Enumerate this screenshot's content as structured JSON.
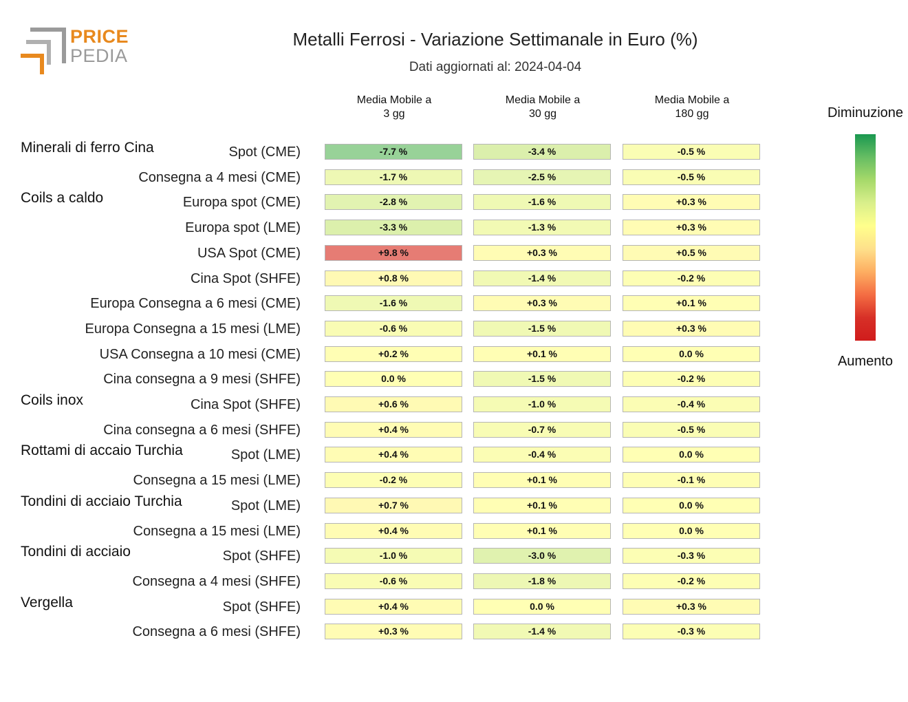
{
  "logo": {
    "line1": "PRICE",
    "line2": "PEDIA"
  },
  "chart_data": {
    "type": "heatmap",
    "title": "Metalli Ferrosi - Variazione Settimanale in Euro (%)",
    "subtitle": "Dati aggiornati al: 2024-04-04",
    "columns": [
      "Media Mobile a\n3 gg",
      "Media Mobile a\n30 gg",
      "Media Mobile a\n180 gg"
    ],
    "legend": {
      "top": "Diminuzione",
      "bottom": "Aumento"
    },
    "colorscale": [
      "#1a9850",
      "#66bd63",
      "#a6d96a",
      "#d9ef8b",
      "#ffff8c",
      "#fee08b",
      "#fdae61",
      "#f46d43",
      "#d73027"
    ],
    "groups": [
      {
        "name": "Minerali di ferro Cina",
        "rows": [
          {
            "label": "Spot (CME)",
            "values": [
              -7.7,
              -3.4,
              -0.5
            ],
            "text": [
              "-7.7 %",
              "-3.4 %",
              "-0.5 %"
            ]
          },
          {
            "label": "Consegna a 4 mesi (CME)",
            "values": [
              -1.7,
              -2.5,
              -0.5
            ],
            "text": [
              "-1.7 %",
              "-2.5 %",
              "-0.5 %"
            ]
          }
        ]
      },
      {
        "name": "Coils a caldo",
        "rows": [
          {
            "label": "Europa spot (CME)",
            "values": [
              -2.8,
              -1.6,
              0.3
            ],
            "text": [
              "-2.8 %",
              "-1.6 %",
              "+0.3 %"
            ]
          },
          {
            "label": "Europa spot (LME)",
            "values": [
              -3.3,
              -1.3,
              0.3
            ],
            "text": [
              "-3.3 %",
              "-1.3 %",
              "+0.3 %"
            ]
          },
          {
            "label": "USA Spot (CME)",
            "values": [
              9.8,
              0.3,
              0.5
            ],
            "text": [
              "+9.8 %",
              "+0.3 %",
              "+0.5 %"
            ]
          },
          {
            "label": "Cina Spot (SHFE)",
            "values": [
              0.8,
              -1.4,
              -0.2
            ],
            "text": [
              "+0.8 %",
              "-1.4 %",
              "-0.2 %"
            ]
          },
          {
            "label": "Europa Consegna a 6 mesi (CME)",
            "values": [
              -1.6,
              0.3,
              0.1
            ],
            "text": [
              "-1.6 %",
              "+0.3 %",
              "+0.1 %"
            ]
          },
          {
            "label": "Europa Consegna a 15 mesi (LME)",
            "values": [
              -0.6,
              -1.5,
              0.3
            ],
            "text": [
              "-0.6 %",
              "-1.5 %",
              "+0.3 %"
            ]
          },
          {
            "label": "USA Consegna a 10 mesi (CME)",
            "values": [
              0.2,
              0.1,
              0.0
            ],
            "text": [
              "+0.2 %",
              "+0.1 %",
              "0.0 %"
            ]
          },
          {
            "label": "Cina consegna a 9 mesi (SHFE)",
            "values": [
              0.0,
              -1.5,
              -0.2
            ],
            "text": [
              "0.0 %",
              "-1.5 %",
              "-0.2 %"
            ]
          }
        ]
      },
      {
        "name": "Coils inox",
        "rows": [
          {
            "label": "Cina Spot (SHFE)",
            "values": [
              0.6,
              -1.0,
              -0.4
            ],
            "text": [
              "+0.6 %",
              "-1.0 %",
              "-0.4 %"
            ]
          },
          {
            "label": "Cina consegna a 6 mesi (SHFE)",
            "values": [
              0.4,
              -0.7,
              -0.5
            ],
            "text": [
              "+0.4 %",
              "-0.7 %",
              "-0.5 %"
            ]
          }
        ]
      },
      {
        "name": "Rottami di accaio Turchia",
        "rows": [
          {
            "label": "Spot (LME)",
            "values": [
              0.4,
              -0.4,
              0.0
            ],
            "text": [
              "+0.4 %",
              "-0.4 %",
              "0.0 %"
            ]
          },
          {
            "label": "Consegna a 15 mesi (LME)",
            "values": [
              -0.2,
              0.1,
              -0.1
            ],
            "text": [
              "-0.2 %",
              "+0.1 %",
              "-0.1 %"
            ]
          }
        ]
      },
      {
        "name": "Tondini di acciaio Turchia",
        "rows": [
          {
            "label": "Spot (LME)",
            "values": [
              0.7,
              0.1,
              0.0
            ],
            "text": [
              "+0.7 %",
              "+0.1 %",
              "0.0 %"
            ]
          },
          {
            "label": "Consegna a 15 mesi (LME)",
            "values": [
              0.4,
              0.1,
              0.0
            ],
            "text": [
              "+0.4 %",
              "+0.1 %",
              "0.0 %"
            ]
          }
        ]
      },
      {
        "name": "Tondini di acciaio",
        "rows": [
          {
            "label": "Spot (SHFE)",
            "values": [
              -1.0,
              -3.0,
              -0.3
            ],
            "text": [
              "-1.0 %",
              "-3.0 %",
              "-0.3 %"
            ]
          },
          {
            "label": "Consegna a 4 mesi (SHFE)",
            "values": [
              -0.6,
              -1.8,
              -0.2
            ],
            "text": [
              "-0.6 %",
              "-1.8 %",
              "-0.2 %"
            ]
          }
        ]
      },
      {
        "name": "Vergella",
        "rows": [
          {
            "label": "Spot (SHFE)",
            "values": [
              0.4,
              0.0,
              0.3
            ],
            "text": [
              "+0.4 %",
              "0.0 %",
              "+0.3 %"
            ]
          },
          {
            "label": "Consegna a 6 mesi (SHFE)",
            "values": [
              0.3,
              -1.4,
              -0.3
            ],
            "text": [
              "+0.3 %",
              "-1.4 %",
              "-0.3 %"
            ]
          }
        ]
      }
    ]
  }
}
